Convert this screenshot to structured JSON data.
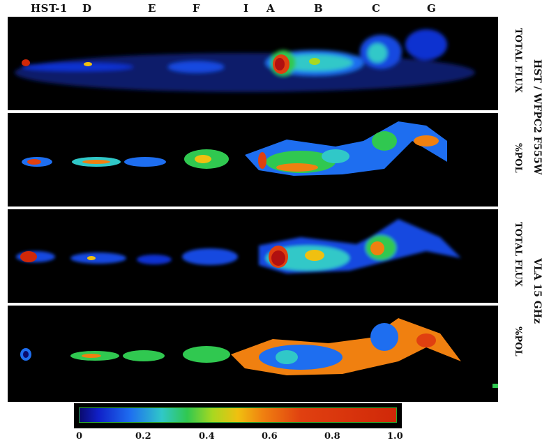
{
  "knot_labels": [
    "HST-1",
    "D",
    "E",
    "F",
    "I",
    "A",
    "B",
    "C",
    "G"
  ],
  "panel_labels": {
    "hst": "HST / WFPC2 F555W",
    "vla": "VLA 15 GHz",
    "total_flux_1": "TOTAL FLUX",
    "pol_1": "%POL",
    "total_flux_2": "TOTAL FLUX",
    "pol_2": "%POL"
  },
  "colorbar": {
    "ticks": [
      "0",
      "0.2",
      "0.4",
      "0.6",
      "0.8",
      "1.0"
    ],
    "stops": [
      {
        "offset": 0.0,
        "color": "#0a0a6e"
      },
      {
        "offset": 0.06,
        "color": "#1020c8"
      },
      {
        "offset": 0.16,
        "color": "#1e6ef0"
      },
      {
        "offset": 0.26,
        "color": "#30c8c8"
      },
      {
        "offset": 0.34,
        "color": "#30c850"
      },
      {
        "offset": 0.42,
        "color": "#a8d820"
      },
      {
        "offset": 0.5,
        "color": "#f0c010"
      },
      {
        "offset": 0.58,
        "color": "#f08010"
      },
      {
        "offset": 0.7,
        "color": "#e04010"
      },
      {
        "offset": 1.0,
        "color": "#d02808"
      }
    ]
  },
  "colors": {
    "background": "#000000",
    "low": "#1020c8",
    "mid": "#30c850",
    "high": "#e04010",
    "peak": "#b01010"
  }
}
